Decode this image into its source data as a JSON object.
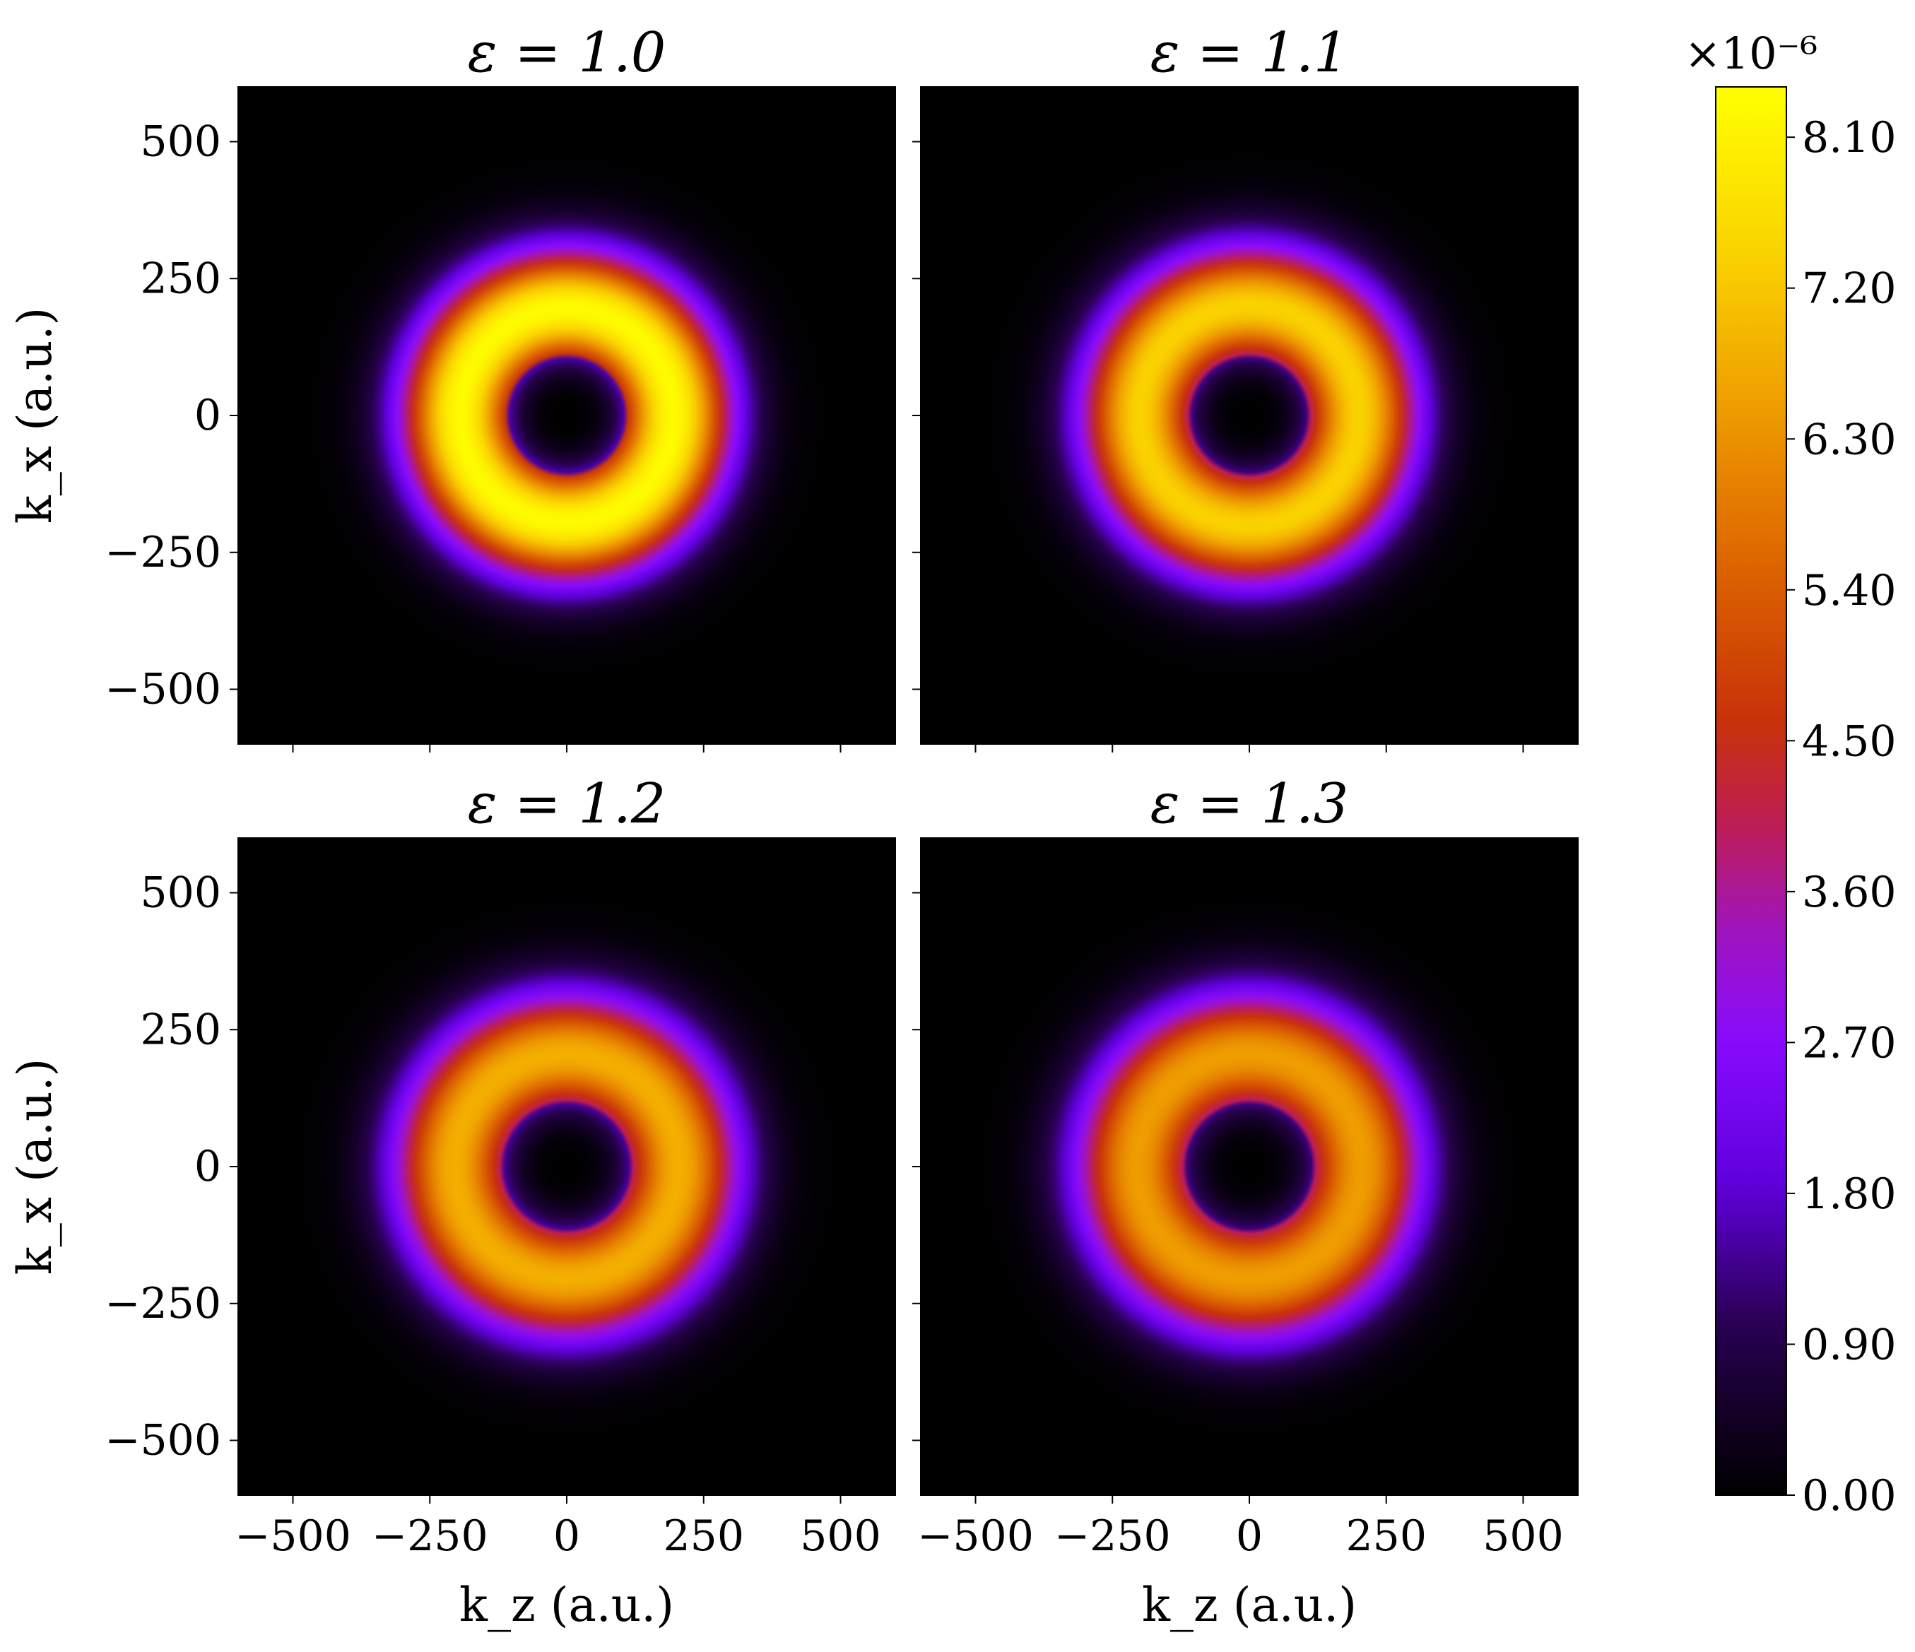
{
  "chart_data": {
    "type": "heatmap",
    "layout": "2x2",
    "colormap": "gnuplot2-like (black → indigo → violet → red → orange → yellow)",
    "xlabel": "k_z (a.u.)",
    "ylabel": "k_x (a.u.)",
    "xlim": [
      -600,
      600
    ],
    "ylim": [
      -600,
      600
    ],
    "xticks": [
      -500,
      -250,
      0,
      250,
      500
    ],
    "yticks": [
      500,
      250,
      0,
      -250,
      -500
    ],
    "colorbar": {
      "min": 0.0,
      "max": 8.4,
      "ticks": [
        "0.00",
        "0.90",
        "1.80",
        "2.70",
        "3.60",
        "4.50",
        "5.40",
        "6.30",
        "7.20",
        "8.10"
      ],
      "offset_label": "×10⁻⁶"
    },
    "panels": [
      {
        "title": "ε = 1.0",
        "peak_value": 8.3,
        "peak_radius": 195,
        "ring_half_width": 110,
        "inner_radius": 110,
        "center_value": 0.0
      },
      {
        "title": "ε = 1.1",
        "peak_value": 7.4,
        "peak_radius": 200,
        "ring_half_width": 112,
        "inner_radius": 112,
        "center_value": 0.0
      },
      {
        "title": "ε = 1.2",
        "peak_value": 6.8,
        "peak_radius": 205,
        "ring_half_width": 115,
        "inner_radius": 115,
        "center_value": 0.0
      },
      {
        "title": "ε = 1.3",
        "peak_value": 6.5,
        "peak_radius": 205,
        "ring_half_width": 118,
        "inner_radius": 118,
        "center_value": 0.0
      }
    ]
  }
}
